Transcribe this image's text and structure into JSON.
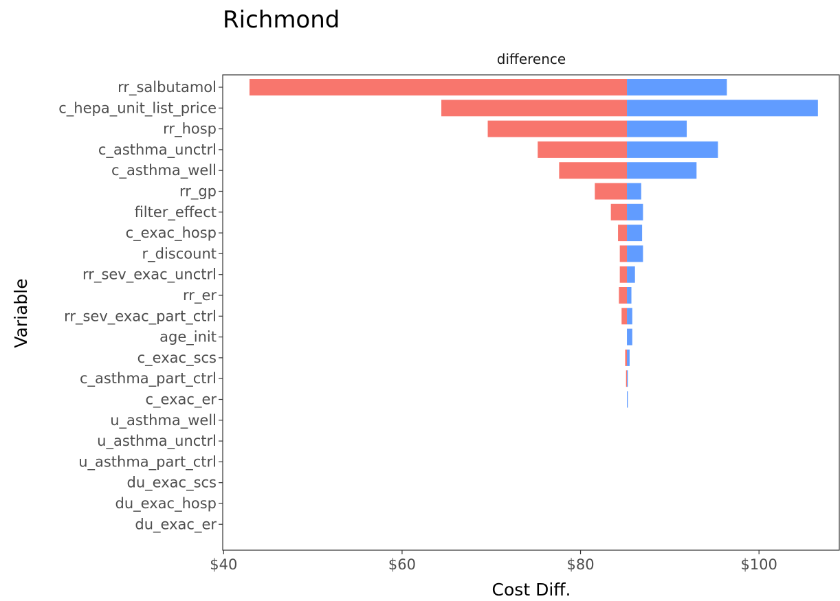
{
  "chart_data": {
    "type": "bar",
    "title": "Richmond",
    "facet_label": "difference",
    "xlabel": "Cost Diff.",
    "ylabel": "Variable",
    "xlim": [
      39.9,
      109
    ],
    "x_ticks": [
      {
        "value": 40,
        "label": "$40"
      },
      {
        "value": 60,
        "label": "$60"
      },
      {
        "value": 80,
        "label": "$80"
      },
      {
        "value": 100,
        "label": "$100"
      }
    ],
    "base": 85.2,
    "categories": [
      "rr_salbutamol",
      "c_hepa_unit_list_price",
      "rr_hosp",
      "c_asthma_unctrl",
      "c_asthma_well",
      "rr_gp",
      "filter_effect",
      "c_exac_hosp",
      "r_discount",
      "rr_sev_exac_unctrl",
      "rr_er",
      "rr_sev_exac_part_ctrl",
      "age_init",
      "c_exac_scs",
      "c_asthma_part_ctrl",
      "c_exac_er",
      "u_asthma_well",
      "u_asthma_unctrl",
      "u_asthma_part_ctrl",
      "du_exac_scs",
      "du_exac_hosp",
      "du_exac_er"
    ],
    "series": [
      {
        "color": "#F8766D",
        "values": [
          42.9,
          64.4,
          69.6,
          75.2,
          77.6,
          81.6,
          83.4,
          84.2,
          84.4,
          84.4,
          84.3,
          84.6,
          85.2,
          85.0,
          85.1,
          85.2,
          85.2,
          85.2,
          85.2,
          85.2,
          85.2,
          85.2
        ]
      },
      {
        "color": "#619CFF",
        "values": [
          96.4,
          106.6,
          91.9,
          95.4,
          93.0,
          86.8,
          87.0,
          86.9,
          87.0,
          86.1,
          85.7,
          85.8,
          85.8,
          85.5,
          85.3,
          85.3,
          85.2,
          85.2,
          85.2,
          85.2,
          85.2,
          85.2
        ]
      }
    ],
    "legend": "none",
    "grid": false
  }
}
